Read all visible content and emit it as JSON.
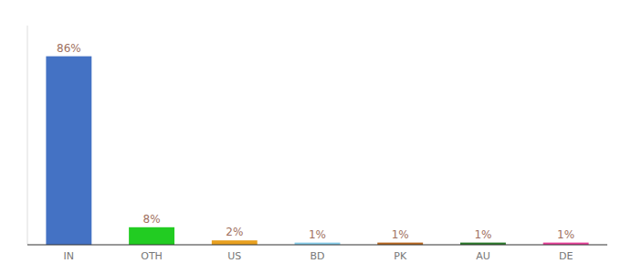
{
  "chart_data": {
    "type": "bar",
    "categories": [
      "IN",
      "OTH",
      "US",
      "BD",
      "PK",
      "AU",
      "DE"
    ],
    "values": [
      86,
      8,
      2,
      1,
      1,
      1,
      1
    ],
    "value_labels": [
      "86%",
      "8%",
      "2%",
      "1%",
      "1%",
      "1%",
      "1%"
    ],
    "colors": [
      "#4472c4",
      "#22cc22",
      "#e8a020",
      "#87ceeb",
      "#b86820",
      "#2a7a2a",
      "#e8409a"
    ],
    "ylim": [
      0,
      100
    ],
    "data_labels": true,
    "tick_labels": "x"
  }
}
